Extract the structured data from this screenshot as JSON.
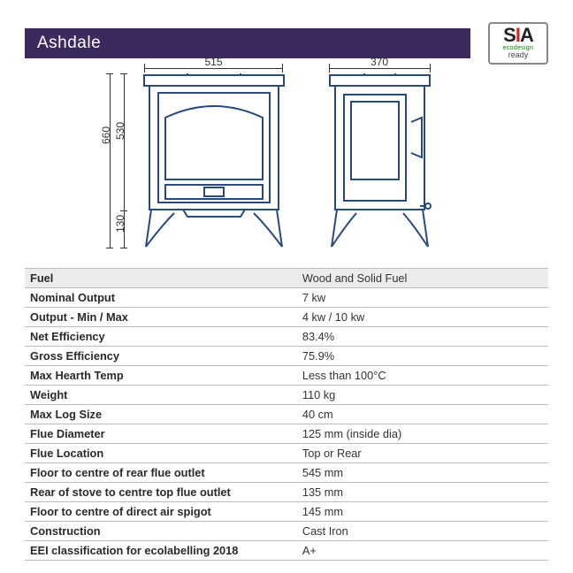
{
  "title": "Ashdale",
  "badge": {
    "brand": "SIA",
    "eco": "ecodesign",
    "ready": "ready"
  },
  "dimensions": {
    "front_width": "515",
    "side_depth": "370",
    "total_height": "660",
    "body_height": "530",
    "leg_height": "130"
  },
  "drawing": {
    "stroke": "#2a4a7a",
    "stroke_width": 2
  },
  "colors": {
    "title_bg": "#3c2a5e",
    "title_text": "#ffffff",
    "table_header_bg": "#e9e9e9",
    "table_border": "#bdbdbd",
    "text": "#333333"
  },
  "specs": [
    {
      "label": "Fuel",
      "value": "Wood and Solid Fuel"
    },
    {
      "label": "Nominal Output",
      "value": "7 kw"
    },
    {
      "label": "Output - Min / Max",
      "value": "4 kw / 10 kw"
    },
    {
      "label": "Net Efficiency",
      "value": "83.4%"
    },
    {
      "label": "Gross Efficiency",
      "value": "75.9%"
    },
    {
      "label": "Max Hearth Temp",
      "value": "Less than 100°C"
    },
    {
      "label": "Weight",
      "value": "110 kg"
    },
    {
      "label": "Max Log Size",
      "value": "40 cm"
    },
    {
      "label": "Flue Diameter",
      "value": "125 mm (inside dia)"
    },
    {
      "label": "Flue Location",
      "value": "Top or Rear"
    },
    {
      "label": "Floor to centre of rear flue outlet",
      "value": "545 mm"
    },
    {
      "label": "Rear of stove to centre top flue outlet",
      "value": "135 mm"
    },
    {
      "label": "Floor to centre of direct air spigot",
      "value": "145 mm"
    },
    {
      "label": "Construction",
      "value": "Cast Iron"
    },
    {
      "label": "EEI classification for ecolabelling 2018",
      "value": "A+"
    }
  ]
}
